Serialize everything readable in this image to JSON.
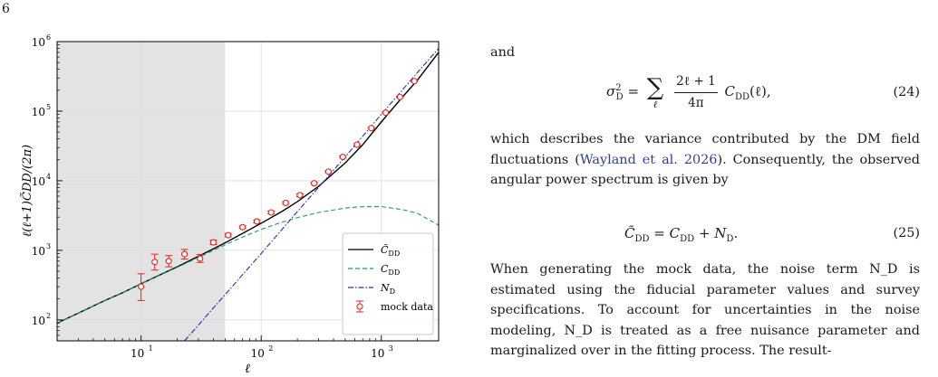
{
  "page_number": "6",
  "figure": {
    "y_axis_label": "ℓ(ℓ+1)C̃DD/(2π)",
    "x_axis_label": "ℓ",
    "x_ticks": [
      "10",
      "10",
      "10"
    ],
    "x_tick_exps": [
      "1",
      "2",
      "3"
    ],
    "y_ticks": [
      "10",
      "10",
      "10",
      "10",
      "10"
    ],
    "y_tick_exps": [
      "2",
      "3",
      "4",
      "5",
      "6"
    ],
    "legend": [
      {
        "label": "C̃DD",
        "sym": "C̃",
        "sub": "DD",
        "style": "solid",
        "color": "#000000"
      },
      {
        "label": "CDD",
        "sym": "C",
        "sub": "DD",
        "style": "dashed",
        "color": "#1a9c6e"
      },
      {
        "label": "ND",
        "sym": "N",
        "sub": "D",
        "style": "dashdot",
        "color": "#2a2ab0"
      },
      {
        "label": "mock data",
        "sym": "mock data",
        "sub": "",
        "style": "errorbar",
        "color": "#e8211d"
      }
    ]
  },
  "chart_data": {
    "type": "line",
    "title": "",
    "xlabel": "ℓ",
    "ylabel": "ℓ(ℓ+1)C̃DD/(2π)",
    "xscale": "log",
    "yscale": "log",
    "xlim": [
      2,
      3000
    ],
    "ylim": [
      50,
      1000000
    ],
    "grid": true,
    "legend_position": "lower-right",
    "shaded_region_x": [
      2,
      50
    ],
    "series": [
      {
        "name": "C̃DD",
        "style": "solid",
        "color": "#000000",
        "x": [
          2,
          3,
          5,
          7,
          10,
          15,
          20,
          30,
          40,
          50,
          70,
          100,
          150,
          200,
          300,
          500,
          700,
          1000,
          1500,
          2000,
          3000
        ],
        "y": [
          90,
          125,
          190,
          245,
          330,
          460,
          580,
          820,
          1050,
          1280,
          1750,
          2450,
          3650,
          5000,
          8300,
          18000,
          33000,
          70000,
          160000,
          280000,
          700000
        ]
      },
      {
        "name": "CDD",
        "style": "dashed",
        "color": "#1a9c6e",
        "x": [
          2,
          3,
          5,
          7,
          10,
          15,
          20,
          30,
          50,
          70,
          100,
          150,
          200,
          300,
          500,
          700,
          1000,
          1500,
          2000,
          3000
        ],
        "y": [
          90,
          125,
          190,
          245,
          330,
          455,
          570,
          790,
          1200,
          1550,
          2000,
          2550,
          2950,
          3500,
          4050,
          4250,
          4250,
          3850,
          3400,
          2300
        ]
      },
      {
        "name": "ND",
        "style": "dashdot",
        "color": "#2a2ab0",
        "x": [
          23,
          50,
          100,
          200,
          500,
          1000,
          2000,
          3000
        ],
        "y": [
          50,
          230,
          900,
          3600,
          22000,
          90000,
          360000,
          800000
        ]
      },
      {
        "name": "mock data",
        "style": "errorbar",
        "color": "#e8211d",
        "x": [
          10,
          13,
          17,
          23,
          31,
          40,
          53,
          70,
          92,
          121,
          160,
          210,
          276,
          363,
          478,
          628,
          826,
          1087,
          1430,
          1880
        ],
        "y": [
          300,
          680,
          700,
          880,
          760,
          1300,
          1650,
          2150,
          2600,
          3500,
          4800,
          6200,
          9200,
          13500,
          22000,
          33000,
          57000,
          95000,
          160000,
          270000
        ],
        "yerr_low": [
          110,
          160,
          120,
          130,
          90,
          90,
          90,
          100,
          120,
          150,
          180,
          240,
          320,
          450,
          650,
          950,
          1500,
          2400,
          3800,
          6000
        ],
        "yerr_high": [
          160,
          200,
          140,
          150,
          110,
          100,
          100,
          110,
          130,
          160,
          200,
          260,
          340,
          480,
          700,
          1000,
          1600,
          2600,
          4000,
          6400
        ]
      }
    ]
  },
  "text": {
    "p1": "and",
    "eq24": {
      "lhs_sym": "σ",
      "lhs_sup": "2",
      "lhs_sub": "D",
      "sum_sub": "ℓ",
      "num": "2ℓ + 1",
      "den": "4π",
      "rhs": "C",
      "rhs_sub": "DD",
      "rhs_arg": "(ℓ),",
      "label": "(24)"
    },
    "p2_a": "which describes the variance contributed by the DM field fluctuations (",
    "p2_cite": "Wayland et al. 2026",
    "p2_b": "). Consequently, the observed angular power spectrum is given by",
    "eq25": {
      "lhs": "C̃",
      "lhs_sub": "DD",
      "eq": " = ",
      "t1": "C",
      "t1_sub": "DD",
      "plus": " + ",
      "t2": "N",
      "t2_sub": "D",
      "end": ".",
      "label": "(25)"
    },
    "p3": "When generating the mock data, the noise term N_D is estimated using the fiducial parameter values and survey specifications. To account for uncertainties in the noise modeling, N_D is treated as a free nuisance parameter and marginalized over in the fitting process. The result-"
  }
}
